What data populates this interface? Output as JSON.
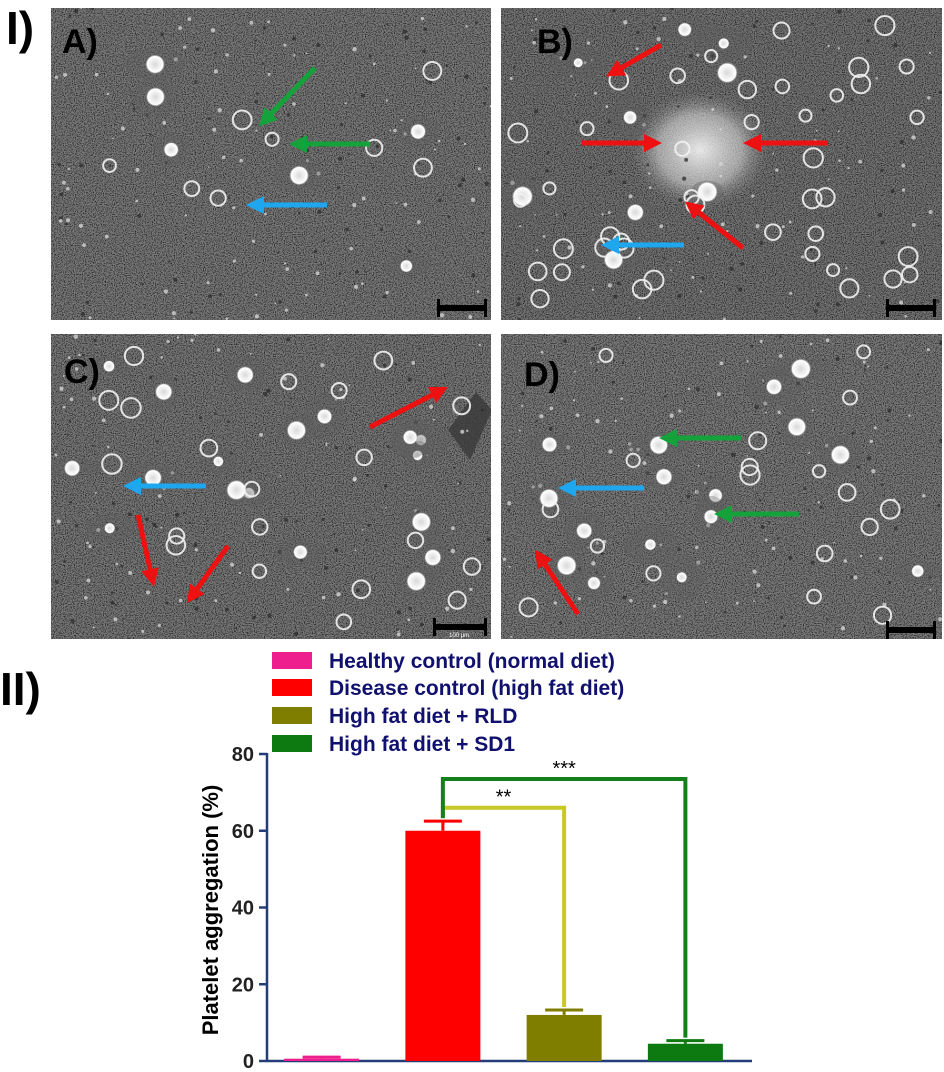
{
  "figure": {
    "part_one_label": "I)",
    "part_two_label": "II)",
    "panels": [
      {
        "label": "A)",
        "scale_text": "",
        "arrows": [
          {
            "color": "green",
            "from": [
              315,
              68
            ],
            "to": [
              265,
              120
            ]
          },
          {
            "color": "green",
            "from": [
              370,
              144
            ],
            "to": [
              298,
              144
            ]
          },
          {
            "color": "blue",
            "from": [
              327,
              205
            ],
            "to": [
              255,
              205
            ]
          }
        ]
      },
      {
        "label": "B)",
        "scale_text": "",
        "arrows": [
          {
            "color": "red",
            "from": [
              661,
              45
            ],
            "to": [
              614,
              72
            ]
          },
          {
            "color": "red",
            "from": [
              582,
              143
            ],
            "to": [
              653,
              143
            ]
          },
          {
            "color": "red",
            "from": [
              828,
              143
            ],
            "to": [
              752,
              143
            ]
          },
          {
            "color": "red",
            "from": [
              743,
              248
            ],
            "to": [
              692,
              207
            ]
          },
          {
            "color": "blue",
            "from": [
              684,
              245
            ],
            "to": [
              610,
              245
            ]
          }
        ]
      },
      {
        "label": "C)",
        "scale_text": "100 μm",
        "arrows": [
          {
            "color": "red",
            "from": [
              370,
              427
            ],
            "to": [
              440,
              391
            ]
          },
          {
            "color": "blue",
            "from": [
              206,
              486
            ],
            "to": [
              132,
              486
            ]
          },
          {
            "color": "red",
            "from": [
              138,
              515
            ],
            "to": [
              152,
              578
            ]
          },
          {
            "color": "red",
            "from": [
              228,
              546
            ],
            "to": [
              192,
              596
            ]
          }
        ]
      },
      {
        "label": "D)",
        "scale_text": "",
        "arrows": [
          {
            "color": "green",
            "from": [
              741,
              438
            ],
            "to": [
              668,
              438
            ]
          },
          {
            "color": "blue",
            "from": [
              644,
              488
            ],
            "to": [
              567,
              488
            ]
          },
          {
            "color": "green",
            "from": [
              799,
              514
            ],
            "to": [
              723,
              514
            ]
          },
          {
            "color": "red",
            "from": [
              578,
              614
            ],
            "to": [
              540,
              557
            ]
          }
        ]
      }
    ]
  },
  "legend": {
    "entries": [
      {
        "label": "Healthy control (normal diet)",
        "color": "#ee1e8e"
      },
      {
        "label": "Disease control (high fat diet)",
        "color": "#ff0000"
      },
      {
        "label": "High fat diet + RLD",
        "color": "#807e00"
      },
      {
        "label": "High fat diet + SD1",
        "color": "#0c7a10"
      }
    ]
  },
  "colors": {
    "green_arrow": "#15a23a",
    "blue_arrow": "#1ea6ef",
    "red_arrow": "#ee1111",
    "axis": "#243c78",
    "rld_bracket": "#c8c826",
    "sd1_bracket": "#15801b"
  },
  "chart_data": {
    "type": "bar",
    "categories": [
      "Healthy control (normal diet)",
      "Disease control (high fat diet)",
      "High fat diet + RLD",
      "High fat diet + SD1"
    ],
    "series": [
      {
        "name": "",
        "values": [
          0.6,
          60,
          12,
          4.5
        ],
        "errors": [
          0.4,
          2.5,
          1.3,
          0.8
        ]
      }
    ],
    "colors": [
      "#ee1e8e",
      "#ff0000",
      "#807e00",
      "#0c7a10"
    ],
    "title": "",
    "xlabel": "",
    "ylabel": "Platelet aggregation (%)",
    "ylim": [
      0,
      80
    ],
    "yticks": [
      0,
      20,
      40,
      60,
      80
    ],
    "significance": [
      {
        "from": "Disease control (high fat diet)",
        "to": "High fat diet + RLD",
        "label": "**",
        "level": 66
      },
      {
        "from": "Disease control (high fat diet)",
        "to": "High fat diet + SD1",
        "label": "***",
        "level": 73.5
      }
    ]
  }
}
